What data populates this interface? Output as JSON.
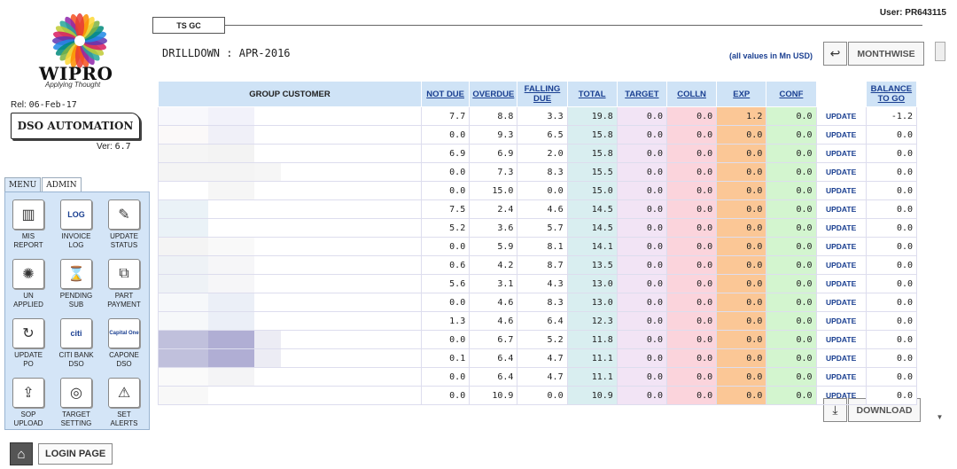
{
  "brand": {
    "wordmark": "WIPRO",
    "tagline": "Applying Thought"
  },
  "release": {
    "label": "Rel:",
    "date": "06-Feb-17"
  },
  "app": {
    "title": "DSO AUTOMATION",
    "version_label": "Ver:",
    "version": "6.7"
  },
  "tabs": [
    "MENU",
    "ADMIN"
  ],
  "menu_items": [
    {
      "label": "MIS\nREPORT",
      "icon": "report-icon",
      "glyph": "▥"
    },
    {
      "label": "INVOICE\nLOG",
      "icon": "log-icon",
      "glyph": "LOG"
    },
    {
      "label": "UPDATE\nSTATUS",
      "icon": "edit-status-icon",
      "glyph": "✎"
    },
    {
      "label": "UN\nAPPLIED",
      "icon": "unapplied-icon",
      "glyph": "✺"
    },
    {
      "label": "PENDING\nSUB",
      "icon": "hourglass-icon",
      "glyph": "⌛"
    },
    {
      "label": "PART\nPAYMENT",
      "icon": "part-payment-icon",
      "glyph": "⧉"
    },
    {
      "label": "UPDATE\nPO",
      "icon": "refresh-icon",
      "glyph": "↻"
    },
    {
      "label": "CITI BANK\nDSO",
      "icon": "citi-logo-icon",
      "glyph": "citi"
    },
    {
      "label": "CAPONE\nDSO",
      "icon": "capital-one-logo-icon",
      "glyph": "Capital One"
    },
    {
      "label": "SOP\nUPLOAD",
      "icon": "upload-doc-icon",
      "glyph": "⇪"
    },
    {
      "label": "TARGET\nSETTING",
      "icon": "target-icon",
      "glyph": "◎"
    },
    {
      "label": "SET\nALERTS",
      "icon": "alert-icon",
      "glyph": "⚠"
    }
  ],
  "login": {
    "label": "LOGIN PAGE"
  },
  "user": {
    "label": "User:",
    "id": "PR643115"
  },
  "top_tab": "TS GC",
  "drilldown": {
    "label": "DRILLDOWN :",
    "period": "APR-2016"
  },
  "values_note": "(all values in Mn USD)",
  "buttons": {
    "monthwise": "MONTHWISE",
    "download": "DOWNLOAD"
  },
  "columns": [
    "GROUP CUSTOMER",
    "NOT DUE",
    "OVERDUE",
    "FALLING DUE",
    "TOTAL",
    "TARGET",
    "COLLN",
    "EXP",
    "CONF",
    "",
    "BALANCE TO GO"
  ],
  "update_label": "UPDATE",
  "colors": {
    "header_bg": "#cfe3f6",
    "total": "#d9eef0",
    "target": "#f2e4f5",
    "colln": "#fbd4dc",
    "exp": "#fbc796",
    "conf": "#d3f5cf",
    "link": "#1a3f91"
  },
  "rows": [
    {
      "cust": [
        "#f8f8fc",
        "#f2f2fa",
        "#ffffff"
      ],
      "not_due": "7.7",
      "overdue": "8.8",
      "falling_due": "3.3",
      "total": "19.8",
      "target": "0.0",
      "colln": "0.0",
      "exp": "1.2",
      "conf": "0.0",
      "balance": "-1.2"
    },
    {
      "cust": [
        "#fbf9f9",
        "#f0f0f8",
        "#ffffff"
      ],
      "not_due": "0.0",
      "overdue": "9.3",
      "falling_due": "6.5",
      "total": "15.8",
      "target": "0.0",
      "colln": "0.0",
      "exp": "0.0",
      "conf": "0.0",
      "balance": "0.0"
    },
    {
      "cust": [
        "#f5f5f5",
        "#f3f3f3",
        "#ffffff"
      ],
      "not_due": "6.9",
      "overdue": "6.9",
      "falling_due": "2.0",
      "total": "15.8",
      "target": "0.0",
      "colln": "0.0",
      "exp": "0.0",
      "conf": "0.0",
      "balance": "0.0"
    },
    {
      "cust": [
        "#f4f4f4",
        "#f4f4f4",
        "#f6f6f6"
      ],
      "not_due": "0.0",
      "overdue": "7.3",
      "falling_due": "8.3",
      "total": "15.5",
      "target": "0.0",
      "colln": "0.0",
      "exp": "0.0",
      "conf": "0.0",
      "balance": "0.0"
    },
    {
      "cust": [
        "#ffffff",
        "#f6f6f6",
        "#ffffff"
      ],
      "not_due": "0.0",
      "overdue": "15.0",
      "falling_due": "0.0",
      "total": "15.0",
      "target": "0.0",
      "colln": "0.0",
      "exp": "0.0",
      "conf": "0.0",
      "balance": "0.0"
    },
    {
      "cust": [
        "#eaf2f7",
        "#ffffff",
        "#ffffff"
      ],
      "not_due": "7.5",
      "overdue": "2.4",
      "falling_due": "4.6",
      "total": "14.5",
      "target": "0.0",
      "colln": "0.0",
      "exp": "0.0",
      "conf": "0.0",
      "balance": "0.0"
    },
    {
      "cust": [
        "#eaf2f7",
        "#ffffff",
        "#ffffff"
      ],
      "not_due": "5.2",
      "overdue": "3.6",
      "falling_due": "5.7",
      "total": "14.5",
      "target": "0.0",
      "colln": "0.0",
      "exp": "0.0",
      "conf": "0.0",
      "balance": "0.0"
    },
    {
      "cust": [
        "#f4f4f4",
        "#f9f9f9",
        "#ffffff"
      ],
      "not_due": "0.0",
      "overdue": "5.9",
      "falling_due": "8.1",
      "total": "14.1",
      "target": "0.0",
      "colln": "0.0",
      "exp": "0.0",
      "conf": "0.0",
      "balance": "0.0"
    },
    {
      "cust": [
        "#eef2f6",
        "#f6f6f8",
        "#ffffff"
      ],
      "not_due": "0.6",
      "overdue": "4.2",
      "falling_due": "8.7",
      "total": "13.5",
      "target": "0.0",
      "colln": "0.0",
      "exp": "0.0",
      "conf": "0.0",
      "balance": "0.0"
    },
    {
      "cust": [
        "#eef2f6",
        "#f6f6f8",
        "#ffffff"
      ],
      "not_due": "5.6",
      "overdue": "3.1",
      "falling_due": "4.3",
      "total": "13.0",
      "target": "0.0",
      "colln": "0.0",
      "exp": "0.0",
      "conf": "0.0",
      "balance": "0.0"
    },
    {
      "cust": [
        "#f6f8fa",
        "#ebeff7",
        "#ffffff"
      ],
      "not_due": "0.0",
      "overdue": "4.6",
      "falling_due": "8.3",
      "total": "13.0",
      "target": "0.0",
      "colln": "0.0",
      "exp": "0.0",
      "conf": "0.0",
      "balance": "0.0"
    },
    {
      "cust": [
        "#f6f8fa",
        "#ebeff7",
        "#ffffff"
      ],
      "not_due": "1.3",
      "overdue": "4.6",
      "falling_due": "6.4",
      "total": "12.3",
      "target": "0.0",
      "colln": "0.0",
      "exp": "0.0",
      "conf": "0.0",
      "balance": "0.0"
    },
    {
      "cust": [
        "#c0c0dc",
        "#b0aed4",
        "#ececf4"
      ],
      "not_due": "0.0",
      "overdue": "6.7",
      "falling_due": "5.2",
      "total": "11.8",
      "target": "0.0",
      "colln": "0.0",
      "exp": "0.0",
      "conf": "0.0",
      "balance": "0.0"
    },
    {
      "cust": [
        "#c0c0dc",
        "#b0aed4",
        "#ececf4"
      ],
      "not_due": "0.1",
      "overdue": "6.4",
      "falling_due": "4.7",
      "total": "11.1",
      "target": "0.0",
      "colln": "0.0",
      "exp": "0.0",
      "conf": "0.0",
      "balance": "0.0"
    },
    {
      "cust": [
        "#fafafa",
        "#f4f4f6",
        "#ffffff"
      ],
      "not_due": "0.0",
      "overdue": "6.4",
      "falling_due": "4.7",
      "total": "11.1",
      "target": "0.0",
      "colln": "0.0",
      "exp": "0.0",
      "conf": "0.0",
      "balance": "0.0"
    },
    {
      "cust": [
        "#f8f8f8",
        "#ffffff",
        "#ffffff"
      ],
      "not_due": "0.0",
      "overdue": "10.9",
      "falling_due": "0.0",
      "total": "10.9",
      "target": "0.0",
      "colln": "0.0",
      "exp": "0.0",
      "conf": "0.0",
      "balance": "0.0"
    }
  ]
}
